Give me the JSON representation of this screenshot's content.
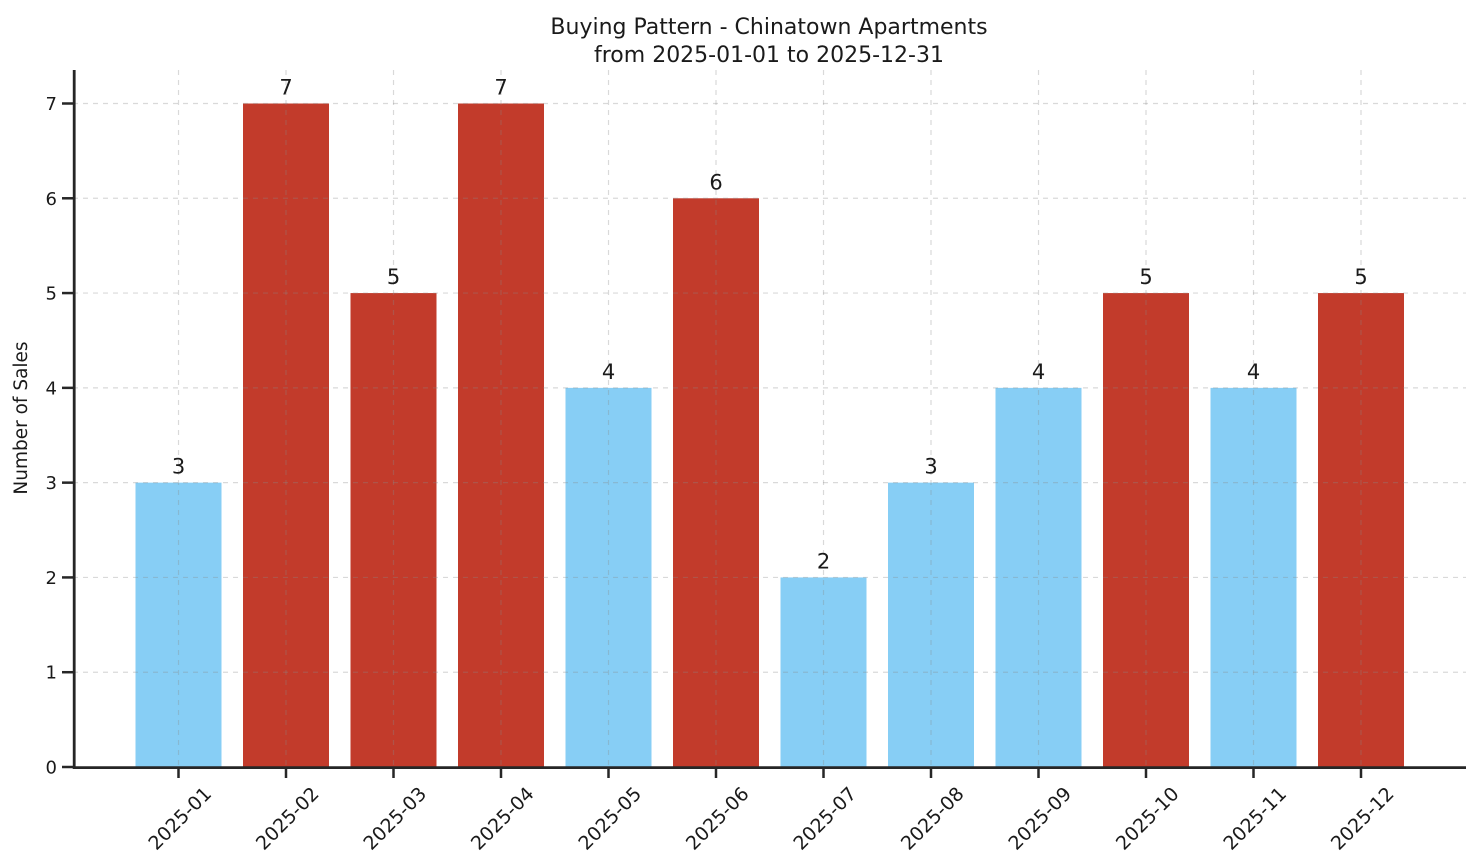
{
  "figure": {
    "title_line1": "Buying Pattern - Chinatown Apartments",
    "title_line2": "from 2025-01-01 to 2025-12-31",
    "ylabel": "Number of Sales"
  },
  "chart_data": {
    "type": "bar",
    "title": "Buying Pattern - Chinatown Apartments\nfrom 2025-01-01 to 2025-12-31",
    "xlabel": "",
    "ylabel": "Number of Sales",
    "categories": [
      "2025-01",
      "2025-02",
      "2025-03",
      "2025-04",
      "2025-05",
      "2025-06",
      "2025-07",
      "2025-08",
      "2025-09",
      "2025-10",
      "2025-11",
      "2025-12"
    ],
    "values": [
      3,
      7,
      5,
      7,
      4,
      6,
      2,
      3,
      4,
      5,
      4,
      5
    ],
    "value_labels": [
      "3",
      "7",
      "5",
      "7",
      "4",
      "6",
      "2",
      "3",
      "4",
      "5",
      "4",
      "5"
    ],
    "bar_colors": [
      "blue",
      "red",
      "red",
      "red",
      "blue",
      "red",
      "blue",
      "blue",
      "blue",
      "red",
      "blue",
      "red"
    ],
    "palette": {
      "blue": "#87cef5",
      "red": "#c23b2b"
    },
    "yticks": [
      0,
      1,
      2,
      3,
      4,
      5,
      6,
      7
    ],
    "ylim": [
      0,
      7.35
    ],
    "grid": true,
    "grid_style": "dashed",
    "grid_over_bars": true,
    "x_tick_rotation": 45,
    "legend": false,
    "value_labels_shown": true
  }
}
